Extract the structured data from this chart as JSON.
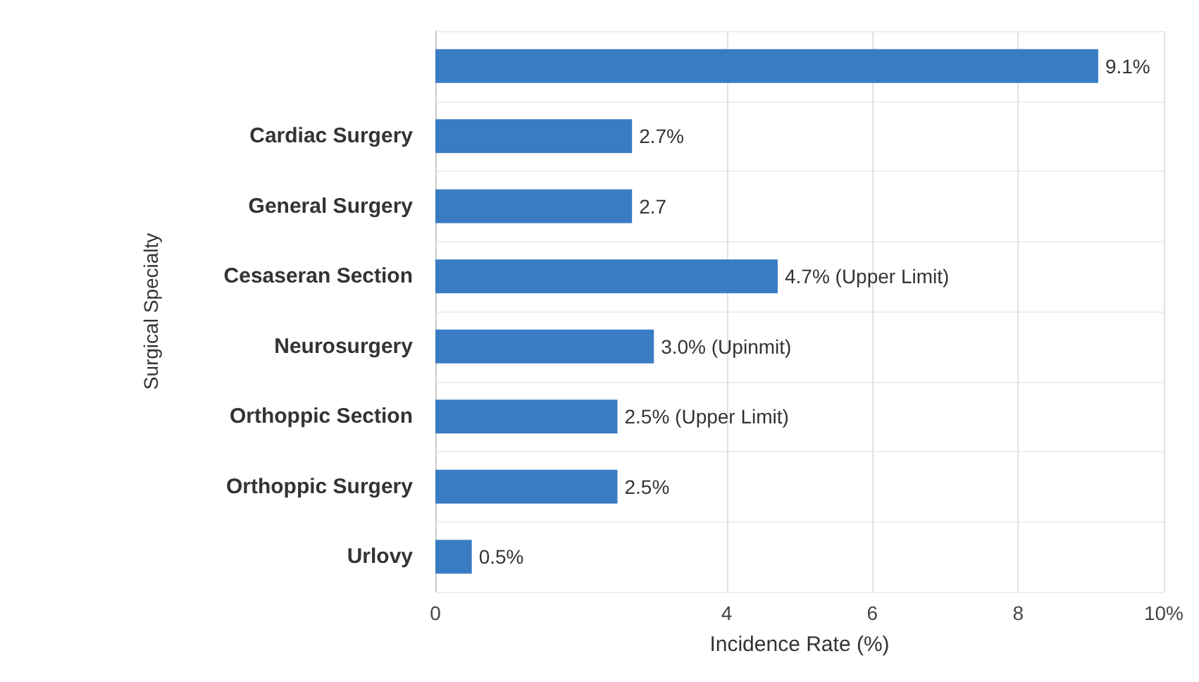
{
  "chart_data": {
    "type": "bar",
    "orientation": "horizontal",
    "xlabel": "Incidence Rate (%)",
    "ylabel": "Surgical Specialty",
    "categories": [
      null,
      "Cardiac Surgery",
      "General Surgery",
      "Cesaseran Section",
      "Neurosurgery",
      "Orthoppic Section",
      "Orthoppic Surgery",
      "Urlovy"
    ],
    "values": [
      9.1,
      2.7,
      2.7,
      4.7,
      3.0,
      2.5,
      2.5,
      0.5
    ],
    "value_labels": [
      "9.1%",
      "2.7%",
      "2.7",
      "4.7% (Upper Limit)",
      "3.0% (Upinmit)",
      "2.5% (Upper Limit)",
      "2.5%",
      "0.5%"
    ],
    "color": "#3a7cc4",
    "xlim": [
      0,
      10
    ],
    "xticks": [
      0,
      4,
      6,
      8,
      {
        "value": 10,
        "label": "10%"
      }
    ],
    "grid": true
  }
}
